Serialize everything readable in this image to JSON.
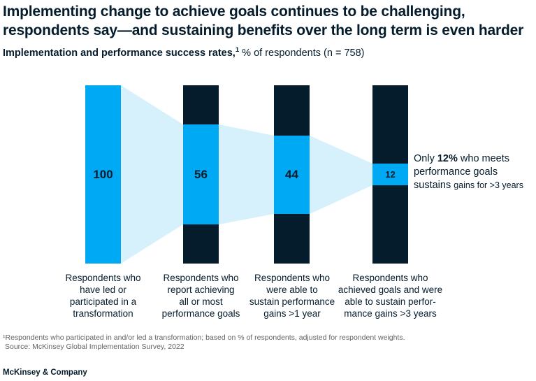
{
  "header": {
    "title_line1": "Implementing change to achieve goals continues to be challenging,",
    "title_line2": "respondents say—and sustaining benefits over the long term is even harder",
    "subtitle_bold": "Implementation and performance success rates,",
    "subtitle_sup": "1",
    "subtitle_rest": " % of respondents (n = 758)"
  },
  "chart_data": {
    "type": "bar",
    "subtype": "funnel",
    "title": "Implementation and performance success rates, % of respondents (n = 758)",
    "categories": [
      "Respondents who have led or participated in a transformation",
      "Respondents who report achieving all or most performance goals",
      "Respondents who were able to sustain performance gains >1 year",
      "Respondents who achieved goals and were able to sustain performance gains >3 years"
    ],
    "values": [
      100,
      56,
      44,
      12
    ],
    "ylim": [
      0,
      100
    ],
    "annotation": "Only 12% who meets performance goals sustains gains for >3 years",
    "layout_hints": "vertical bars with centered blue segments joined by light funnel bands; no axes or gridlines"
  },
  "bars": {
    "labels": [
      {
        "lines": [
          "Respondents who",
          "have led or",
          "participated in a",
          "transformation"
        ]
      },
      {
        "lines": [
          "Respondents who",
          "report achieving",
          "all or most",
          "performance goals"
        ]
      },
      {
        "lines": [
          "Respondents who",
          "were able to",
          "sustain performance",
          "gains >1 year"
        ]
      },
      {
        "lines": [
          "Respondents who",
          "achieved goals and were",
          "able to sustain perfor-",
          "mance gains >3 years"
        ]
      }
    ]
  },
  "annotation": {
    "line1_pre": "Only ",
    "line1_bold": "12%",
    "line1_post": " who meets",
    "line2": "performance goals",
    "line3_main": "sustains ",
    "line3_small": "gains for >3 years"
  },
  "footnote": {
    "line1": "¹Respondents who participated in and/or led a transformation; based on % of respondents, adjusted for respondent weights.",
    "line2": "Source: McKinsey Global Implementation Survey, 2022"
  },
  "footer": {
    "brand": "McKinsey & Company"
  },
  "colors": {
    "bar_dark": "#051C2C",
    "bar_blue": "#00A9F4",
    "funnel": "#D6F0FC",
    "text": "#051C2C",
    "footnote_gray": "#646464"
  }
}
